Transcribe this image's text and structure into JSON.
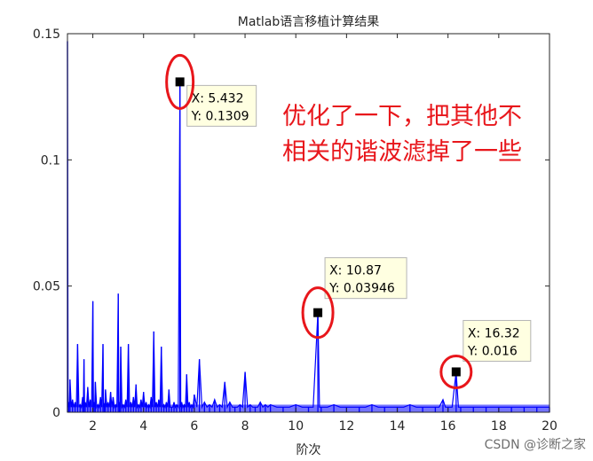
{
  "watermark": "CSDN @诊断之家",
  "annotation": {
    "lines": [
      "优化了一下，把其他不",
      "相关的谐波滤掉了一些"
    ],
    "color": "#e8161b"
  },
  "chart_data": {
    "type": "line",
    "title": "Matlab语言移植计算结果",
    "xlabel": "阶次",
    "ylabel": "",
    "xlim": [
      1,
      20
    ],
    "ylim": [
      0,
      0.15
    ],
    "x_ticks": [
      2,
      4,
      6,
      8,
      10,
      12,
      14,
      16,
      18,
      20
    ],
    "y_ticks": [
      0,
      0.05,
      0.1,
      0.15
    ],
    "y_tick_labels": [
      "0",
      "0.05",
      "0.1",
      "0.15"
    ],
    "grid": false,
    "line_color": "#0000ff",
    "series": [
      {
        "x": [
          1.0,
          1.05,
          1.1,
          1.2,
          1.3,
          1.4,
          1.5,
          1.6,
          1.65,
          1.7,
          1.8,
          1.9,
          2.0,
          2.05,
          2.1,
          2.2,
          2.3,
          2.4,
          2.45,
          2.5,
          2.6,
          2.7,
          2.8,
          2.9,
          3.0,
          3.05,
          3.1,
          3.2,
          3.3,
          3.4,
          3.5,
          3.6,
          3.7,
          3.8,
          3.9,
          4.0,
          4.1,
          4.2,
          4.3,
          4.4,
          4.5,
          4.6,
          4.7,
          4.8,
          4.9,
          5.0,
          5.1,
          5.2,
          5.3,
          5.432,
          5.5,
          5.6,
          5.7,
          5.8,
          5.9,
          6.0,
          6.2,
          6.4,
          6.6,
          6.8,
          7.0,
          7.2,
          7.4,
          7.6,
          7.8,
          8.0,
          8.2,
          8.4,
          8.6,
          8.8,
          9.0,
          9.5,
          10.0,
          10.5,
          10.87,
          11.0,
          11.5,
          12.0,
          12.5,
          13.0,
          13.5,
          14.0,
          14.5,
          15.0,
          15.5,
          15.8,
          16.0,
          16.32,
          16.5,
          17.0,
          17.5,
          18.0,
          18.5,
          19.0,
          19.5,
          20.0
        ],
        "y": [
          0.147,
          0.004,
          0.013,
          0.005,
          0.004,
          0.027,
          0.003,
          0.006,
          0.021,
          0.004,
          0.01,
          0.005,
          0.044,
          0.004,
          0.012,
          0.003,
          0.006,
          0.027,
          0.003,
          0.009,
          0.004,
          0.008,
          0.006,
          0.003,
          0.047,
          0.004,
          0.026,
          0.003,
          0.005,
          0.027,
          0.004,
          0.006,
          0.011,
          0.003,
          0.005,
          0.008,
          0.004,
          0.003,
          0.006,
          0.032,
          0.004,
          0.005,
          0.026,
          0.003,
          0.004,
          0.009,
          0.002,
          0.004,
          0.003,
          0.1309,
          0.004,
          0.003,
          0.015,
          0.004,
          0.003,
          0.007,
          0.021,
          0.004,
          0.003,
          0.005,
          0.003,
          0.012,
          0.004,
          0.002,
          0.003,
          0.016,
          0.003,
          0.002,
          0.004,
          0.003,
          0.003,
          0.002,
          0.003,
          0.002,
          0.03946,
          0.002,
          0.003,
          0.002,
          0.002,
          0.003,
          0.002,
          0.002,
          0.003,
          0.002,
          0.002,
          0.005,
          0.002,
          0.016,
          0.002,
          0.002,
          0.002,
          0.002,
          0.002,
          0.002,
          0.002,
          0.002
        ]
      }
    ],
    "datatips": [
      {
        "x": 5.432,
        "y": 0.1309,
        "x_label": "X: 5.432",
        "y_label": "Y: 0.1309"
      },
      {
        "x": 10.87,
        "y": 0.03946,
        "x_label": "X: 10.87",
        "y_label": "Y: 0.03946"
      },
      {
        "x": 16.32,
        "y": 0.016,
        "x_label": "X: 16.32",
        "y_label": "Y: 0.016"
      }
    ],
    "highlight_color": "#e8161b"
  }
}
